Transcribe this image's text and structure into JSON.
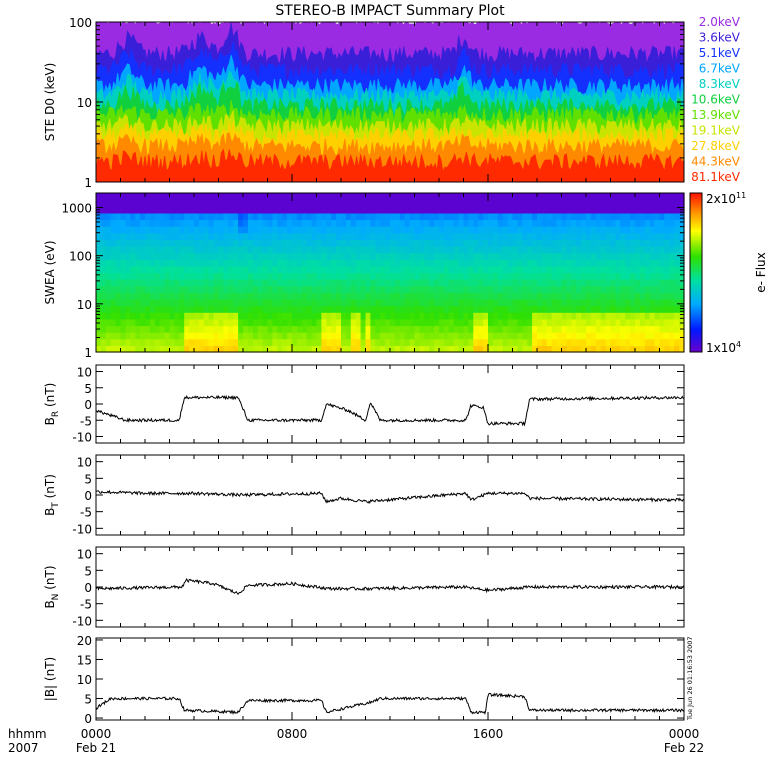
{
  "chart_data": {
    "title": "STEREO-B IMPACT Summary Plot",
    "type": "multi-panel",
    "xaxis": {
      "unit_label": "hhmm",
      "year_label": "2007",
      "ticks": [
        {
          "label": "0000",
          "date": "Feb 21",
          "hour": 0
        },
        {
          "label": "0800",
          "date": "",
          "hour": 8
        },
        {
          "label": "1600",
          "date": "",
          "hour": 16
        },
        {
          "label": "0000",
          "date": "Feb 22",
          "hour": 24
        }
      ],
      "xlim": [
        0,
        24
      ]
    },
    "timestamp": "Tue Jun 26 01:16:53 2007",
    "panels": [
      {
        "id": "ste",
        "type": "line",
        "ylabel": "STE D0 (keV)",
        "yscale": "log",
        "ylim": [
          1,
          100
        ],
        "yticks": [
          {
            "label": "1",
            "value": 1
          },
          {
            "label": "10",
            "value": 10
          },
          {
            "label": "100",
            "value": 100
          }
        ],
        "legend": [
          {
            "label": "2.0keV",
            "color": "#9a2be2",
            "level": 100
          },
          {
            "label": "3.6keV",
            "color": "#3a1fd8",
            "level": 40
          },
          {
            "label": "5.1keV",
            "color": "#1430ff",
            "level": 25
          },
          {
            "label": "6.7keV",
            "color": "#00a6ff",
            "level": 16
          },
          {
            "label": "8.3keV",
            "color": "#00d0c0",
            "level": 12
          },
          {
            "label": "10.6keV",
            "color": "#10d040",
            "level": 9
          },
          {
            "label": "13.9keV",
            "color": "#60e000",
            "level": 7
          },
          {
            "label": "19.1keV",
            "color": "#c8e400",
            "level": 5
          },
          {
            "label": "27.8keV",
            "color": "#ffd000",
            "level": 3.8
          },
          {
            "label": "44.3keV",
            "color": "#ff8a00",
            "level": 2.8
          },
          {
            "label": "81.1keV",
            "color": "#ff2a00",
            "level": 1.8
          }
        ]
      },
      {
        "id": "swea",
        "type": "heatmap",
        "ylabel": "SWEA (eV)",
        "yscale": "log",
        "ylim": [
          1,
          2000
        ],
        "yticks": [
          {
            "label": "1",
            "value": 1
          },
          {
            "label": "10",
            "value": 10
          },
          {
            "label": "100",
            "value": 100
          },
          {
            "label": "1000",
            "value": 1000
          }
        ],
        "colorbar": {
          "label": "e- Flux",
          "max_label": "2x10",
          "max_exp": "11",
          "min_label": "1x10",
          "min_exp": "4"
        }
      },
      {
        "id": "br",
        "type": "line",
        "ylabel": "B",
        "ylabel_sub": "R",
        "ylabel_unit": "(nT)",
        "ylim": [
          -12,
          12
        ],
        "yticks": [
          {
            "label": "10",
            "value": 10
          },
          {
            "label": "5",
            "value": 5
          },
          {
            "label": "0",
            "value": 0
          },
          {
            "label": "-5",
            "value": -5
          },
          {
            "label": "-10",
            "value": -10
          }
        ],
        "segments": [
          {
            "t": 0.0,
            "v": -2.0
          },
          {
            "t": 1.2,
            "v": -5.0
          },
          {
            "t": 3.4,
            "v": -5.0
          },
          {
            "t": 3.6,
            "v": 2.0
          },
          {
            "t": 5.8,
            "v": 2.0
          },
          {
            "t": 6.2,
            "v": -5.0
          },
          {
            "t": 9.2,
            "v": -5.0
          },
          {
            "t": 9.4,
            "v": 0.0
          },
          {
            "t": 10.3,
            "v": -2.0
          },
          {
            "t": 11.0,
            "v": -5.0
          },
          {
            "t": 11.2,
            "v": 0.5
          },
          {
            "t": 11.6,
            "v": -5.0
          },
          {
            "t": 15.1,
            "v": -5.0
          },
          {
            "t": 15.3,
            "v": -0.5
          },
          {
            "t": 15.8,
            "v": -1.0
          },
          {
            "t": 16.0,
            "v": -6.0
          },
          {
            "t": 17.5,
            "v": -6.0
          },
          {
            "t": 17.7,
            "v": 1.5
          },
          {
            "t": 24.0,
            "v": 2.0
          }
        ]
      },
      {
        "id": "bt",
        "type": "line",
        "ylabel": "B",
        "ylabel_sub": "T",
        "ylabel_unit": "(nT)",
        "ylim": [
          -12,
          12
        ],
        "yticks": [
          {
            "label": "10",
            "value": 10
          },
          {
            "label": "5",
            "value": 5
          },
          {
            "label": "0",
            "value": 0
          },
          {
            "label": "-5",
            "value": -5
          },
          {
            "label": "-10",
            "value": -10
          }
        ],
        "segments": [
          {
            "t": 0.0,
            "v": 1.0
          },
          {
            "t": 2.0,
            "v": 0.5
          },
          {
            "t": 4.0,
            "v": 0.5
          },
          {
            "t": 6.0,
            "v": 0.0
          },
          {
            "t": 9.2,
            "v": 0.5
          },
          {
            "t": 9.4,
            "v": -2.0
          },
          {
            "t": 10.0,
            "v": -1.0
          },
          {
            "t": 11.0,
            "v": -2.0
          },
          {
            "t": 15.1,
            "v": 0.5
          },
          {
            "t": 15.3,
            "v": -1.5
          },
          {
            "t": 16.0,
            "v": 0.5
          },
          {
            "t": 17.5,
            "v": 0.5
          },
          {
            "t": 17.7,
            "v": -1.0
          },
          {
            "t": 24.0,
            "v": -1.5
          }
        ]
      },
      {
        "id": "bn",
        "type": "line",
        "ylabel": "B",
        "ylabel_sub": "N",
        "ylabel_unit": "(nT)",
        "ylim": [
          -12,
          12
        ],
        "yticks": [
          {
            "label": "10",
            "value": 10
          },
          {
            "label": "5",
            "value": 5
          },
          {
            "label": "0",
            "value": 0
          },
          {
            "label": "-5",
            "value": -5
          },
          {
            "label": "-10",
            "value": -10
          }
        ],
        "segments": [
          {
            "t": 0.0,
            "v": -0.5
          },
          {
            "t": 3.5,
            "v": 0.0
          },
          {
            "t": 3.7,
            "v": 2.0
          },
          {
            "t": 4.8,
            "v": 1.0
          },
          {
            "t": 5.8,
            "v": -2.0
          },
          {
            "t": 6.2,
            "v": 0.5
          },
          {
            "t": 8.0,
            "v": 1.0
          },
          {
            "t": 9.5,
            "v": -0.5
          },
          {
            "t": 11.0,
            "v": -0.5
          },
          {
            "t": 15.0,
            "v": 0.0
          },
          {
            "t": 16.0,
            "v": -1.0
          },
          {
            "t": 17.7,
            "v": 0.0
          },
          {
            "t": 24.0,
            "v": 0.0
          }
        ]
      },
      {
        "id": "bmag",
        "type": "line",
        "ylabel": "|B| (nT)",
        "ylim": [
          -0.5,
          20.5
        ],
        "yticks": [
          {
            "label": "20",
            "value": 20
          },
          {
            "label": "15",
            "value": 15
          },
          {
            "label": "10",
            "value": 10
          },
          {
            "label": "5",
            "value": 5
          },
          {
            "label": "0",
            "value": 0
          }
        ],
        "segments": [
          {
            "t": 0.0,
            "v": 2.5
          },
          {
            "t": 0.6,
            "v": 5.0
          },
          {
            "t": 3.4,
            "v": 5.0
          },
          {
            "t": 3.6,
            "v": 2.0
          },
          {
            "t": 5.8,
            "v": 1.5
          },
          {
            "t": 6.2,
            "v": 4.5
          },
          {
            "t": 9.2,
            "v": 4.5
          },
          {
            "t": 9.4,
            "v": 1.5
          },
          {
            "t": 11.2,
            "v": 4.0
          },
          {
            "t": 11.6,
            "v": 5.0
          },
          {
            "t": 15.1,
            "v": 5.0
          },
          {
            "t": 15.3,
            "v": 1.5
          },
          {
            "t": 15.9,
            "v": 1.5
          },
          {
            "t": 16.0,
            "v": 6.0
          },
          {
            "t": 17.5,
            "v": 5.5
          },
          {
            "t": 17.7,
            "v": 2.0
          },
          {
            "t": 24.0,
            "v": 2.0
          }
        ]
      }
    ]
  }
}
